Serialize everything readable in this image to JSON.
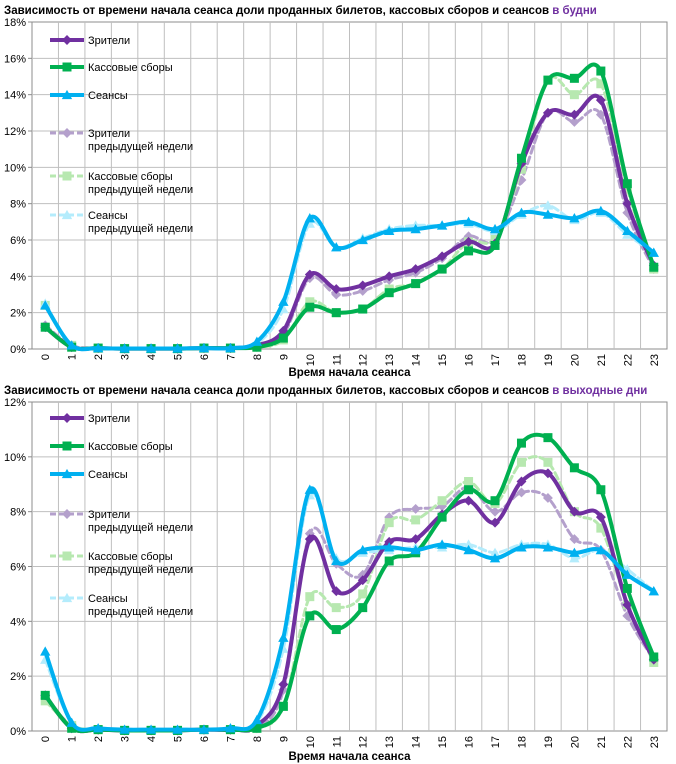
{
  "colors": {
    "viewers": "#7030a0",
    "revenue": "#00b050",
    "sessions": "#00b0f0",
    "viewers_prev": "#b4a0cc",
    "revenue_prev": "#b7e8b0",
    "sessions_prev": "#b4ecfc"
  },
  "chart_data": [
    {
      "type": "line",
      "title": "Зависимость от времени начала сеанса доли проданных билетов, кассовых сборов и сеансов",
      "title_accent": "в будни",
      "xlabel": "Время начала сеанса",
      "ylabel": "",
      "ylim": [
        0,
        18
      ],
      "y_step": 2,
      "y_ticks": [
        "0%",
        "2%",
        "4%",
        "6%",
        "8%",
        "10%",
        "12%",
        "14%",
        "16%",
        "18%"
      ],
      "x": [
        "0",
        "1",
        "2",
        "3",
        "4",
        "5",
        "6",
        "7",
        "8",
        "9",
        "10",
        "11",
        "12",
        "13",
        "14",
        "15",
        "16",
        "17",
        "18",
        "19",
        "20",
        "21",
        "22",
        "23"
      ],
      "grid": true,
      "legend_position": "top-left",
      "series": [
        {
          "key": "viewers_prev",
          "name": "Зрители предыдущей недели",
          "legend": [
            "Зрители",
            "предыдущей недели"
          ],
          "marker": "diamond",
          "dashed": true,
          "values": [
            1.3,
            0.2,
            0.05,
            0.03,
            0.03,
            0.03,
            0.05,
            0.05,
            0.1,
            0.8,
            3.9,
            3.0,
            3.2,
            3.8,
            4.2,
            5.0,
            6.2,
            6.0,
            9.3,
            13.0,
            12.5,
            12.9,
            7.5,
            4.4
          ]
        },
        {
          "key": "revenue_prev",
          "name": "Кассовые сборы предыдущей недели",
          "legend": [
            "Кассовые сборы",
            "предыдущей недели"
          ],
          "marker": "square",
          "dashed": true,
          "values": [
            2.4,
            0.2,
            0.05,
            0.03,
            0.03,
            0.03,
            0.05,
            0.05,
            0.1,
            0.5,
            2.6,
            2.0,
            2.2,
            3.3,
            3.6,
            4.4,
            5.9,
            6.1,
            9.9,
            14.8,
            14.0,
            14.6,
            8.8,
            4.4
          ]
        },
        {
          "key": "sessions_prev",
          "name": "Сеансы предыдущей недели",
          "legend": [
            "Сеансы",
            "предыдущей недели"
          ],
          "marker": "triangle",
          "dashed": true,
          "values": [
            2.5,
            0.2,
            0.05,
            0.03,
            0.03,
            0.03,
            0.05,
            0.05,
            0.3,
            2.2,
            6.9,
            5.6,
            6.1,
            6.6,
            6.8,
            6.8,
            6.9,
            6.5,
            7.4,
            7.9,
            7.1,
            7.5,
            6.3,
            5.3
          ]
        },
        {
          "key": "viewers",
          "name": "Зрители",
          "legend": [
            "Зрители"
          ],
          "marker": "diamond",
          "dashed": false,
          "values": [
            1.2,
            0.1,
            0.05,
            0.02,
            0.02,
            0.02,
            0.05,
            0.05,
            0.2,
            1.0,
            4.1,
            3.3,
            3.5,
            4.0,
            4.4,
            5.1,
            5.9,
            5.8,
            10.2,
            13.0,
            12.9,
            13.7,
            8.0,
            4.6
          ]
        },
        {
          "key": "revenue",
          "name": "Кассовые сборы",
          "legend": [
            "Кассовые сборы"
          ],
          "marker": "square",
          "dashed": false,
          "values": [
            1.2,
            0.1,
            0.05,
            0.02,
            0.02,
            0.02,
            0.05,
            0.05,
            0.1,
            0.6,
            2.3,
            2.0,
            2.2,
            3.1,
            3.6,
            4.4,
            5.4,
            5.7,
            10.5,
            14.8,
            14.9,
            15.3,
            9.1,
            4.5
          ]
        },
        {
          "key": "sessions",
          "name": "Сеансы",
          "legend": [
            "Сеансы"
          ],
          "marker": "triangle",
          "dashed": false,
          "values": [
            2.4,
            0.2,
            0.05,
            0.03,
            0.03,
            0.03,
            0.05,
            0.05,
            0.4,
            2.6,
            7.2,
            5.6,
            6.0,
            6.5,
            6.6,
            6.8,
            7.0,
            6.6,
            7.5,
            7.4,
            7.2,
            7.6,
            6.5,
            5.3
          ]
        }
      ]
    },
    {
      "type": "line",
      "title": "Зависимость от времени начала сеанса доли проданных билетов, кассовых сборов и сеансов",
      "title_accent": "в выходные дни",
      "xlabel": "Время начала сеанса",
      "ylabel": "",
      "ylim": [
        0,
        12
      ],
      "y_step": 2,
      "y_ticks": [
        "0%",
        "2%",
        "4%",
        "6%",
        "8%",
        "10%",
        "12%"
      ],
      "x": [
        "0",
        "1",
        "2",
        "3",
        "4",
        "5",
        "6",
        "7",
        "8",
        "9",
        "10",
        "11",
        "12",
        "13",
        "14",
        "15",
        "16",
        "17",
        "18",
        "19",
        "20",
        "21",
        "22",
        "23"
      ],
      "grid": true,
      "legend_position": "top-left",
      "series": [
        {
          "key": "viewers_prev",
          "name": "Зрители предыдущей недели",
          "legend": [
            "Зрители",
            "предыдущей недели"
          ],
          "marker": "diamond",
          "dashed": true,
          "values": [
            1.2,
            0.2,
            0.05,
            0.03,
            0.03,
            0.03,
            0.05,
            0.05,
            0.1,
            1.5,
            7.2,
            6.1,
            5.7,
            7.8,
            8.1,
            8.2,
            8.9,
            8.0,
            8.7,
            8.5,
            7.0,
            6.6,
            4.2,
            2.6
          ]
        },
        {
          "key": "revenue_prev",
          "name": "Кассовые сборы предыдущей недели",
          "legend": [
            "Кассовые сборы",
            "предыдущей недели"
          ],
          "marker": "square",
          "dashed": true,
          "values": [
            1.1,
            0.2,
            0.05,
            0.03,
            0.03,
            0.03,
            0.05,
            0.05,
            0.1,
            0.9,
            4.9,
            4.5,
            5.0,
            7.6,
            7.7,
            8.4,
            9.1,
            8.3,
            9.8,
            9.8,
            8.0,
            7.4,
            4.6,
            2.5
          ]
        },
        {
          "key": "sessions_prev",
          "name": "Сеансы предыдущей недели",
          "legend": [
            "Сеансы",
            "предыдущей недели"
          ],
          "marker": "triangle",
          "dashed": true,
          "values": [
            2.6,
            0.3,
            0.1,
            0.05,
            0.05,
            0.05,
            0.05,
            0.1,
            0.3,
            3.0,
            8.6,
            6.3,
            6.5,
            6.6,
            6.7,
            6.7,
            6.8,
            6.5,
            6.8,
            6.8,
            6.3,
            6.6,
            5.9,
            5.1
          ]
        },
        {
          "key": "viewers",
          "name": "Зрители",
          "legend": [
            "Зрители"
          ],
          "marker": "diamond",
          "dashed": false,
          "values": [
            1.3,
            0.1,
            0.05,
            0.02,
            0.02,
            0.02,
            0.05,
            0.05,
            0.2,
            1.7,
            7.0,
            5.1,
            5.5,
            6.9,
            7.0,
            7.9,
            8.4,
            7.6,
            9.1,
            9.4,
            8.0,
            7.8,
            4.6,
            2.6
          ]
        },
        {
          "key": "revenue",
          "name": "Кассовые сборы",
          "legend": [
            "Кассовые сборы"
          ],
          "marker": "square",
          "dashed": false,
          "values": [
            1.3,
            0.1,
            0.05,
            0.02,
            0.02,
            0.02,
            0.05,
            0.05,
            0.1,
            0.9,
            4.2,
            3.7,
            4.5,
            6.2,
            6.5,
            7.8,
            8.8,
            8.4,
            10.5,
            10.7,
            9.6,
            8.8,
            5.2,
            2.7
          ]
        },
        {
          "key": "sessions",
          "name": "Сеансы",
          "legend": [
            "Сеансы"
          ],
          "marker": "triangle",
          "dashed": false,
          "values": [
            2.9,
            0.3,
            0.1,
            0.05,
            0.05,
            0.05,
            0.05,
            0.1,
            0.4,
            3.4,
            8.8,
            6.2,
            6.6,
            6.7,
            6.6,
            6.8,
            6.6,
            6.3,
            6.7,
            6.7,
            6.5,
            6.6,
            5.7,
            5.1
          ]
        }
      ]
    }
  ]
}
